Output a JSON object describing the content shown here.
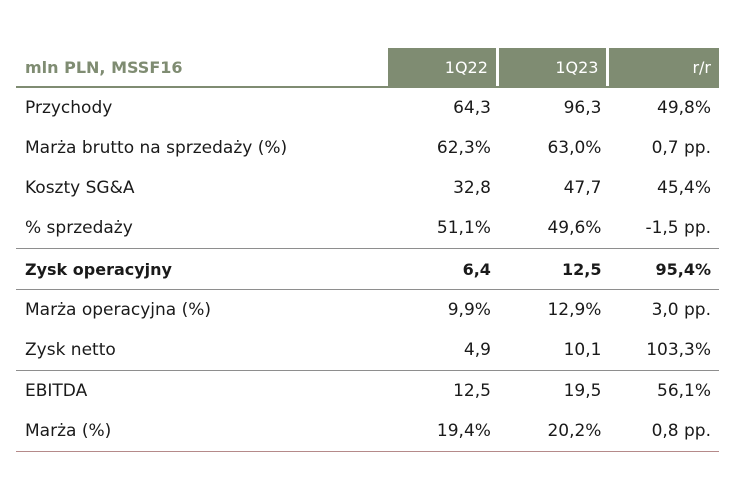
{
  "header": {
    "title": "mln PLN, MSSF16",
    "col1": "1Q22",
    "col2": "1Q23",
    "col3": "r/r"
  },
  "rows": [
    {
      "label": "Przychody",
      "v1": "64,3",
      "v2": "96,3",
      "v3": "49,8%"
    },
    {
      "label": "Marża brutto na sprzedaży (%)",
      "v1": "62,3%",
      "v2": "63,0%",
      "v3": "0,7 pp."
    },
    {
      "label": "Koszty SG&A",
      "v1": "32,8",
      "v2": "47,7",
      "v3": "45,4%"
    },
    {
      "label": "% sprzedaży",
      "v1": "51,1%",
      "v2": "49,6%",
      "v3": "-1,5 pp."
    },
    {
      "label": "Zysk operacyjny",
      "v1": "6,4",
      "v2": "12,5",
      "v3": "95,4%"
    },
    {
      "label": "Marża operacyjna (%)",
      "v1": "9,9%",
      "v2": "12,9%",
      "v3": "3,0 pp."
    },
    {
      "label": "Zysk netto",
      "v1": "4,9",
      "v2": "10,1",
      "v3": "103,3%"
    },
    {
      "label": "EBITDA",
      "v1": "12,5",
      "v2": "19,5",
      "v3": "56,1%"
    },
    {
      "label": "Marża (%)",
      "v1": "19,4%",
      "v2": "20,2%",
      "v3": "0,8 pp."
    }
  ]
}
